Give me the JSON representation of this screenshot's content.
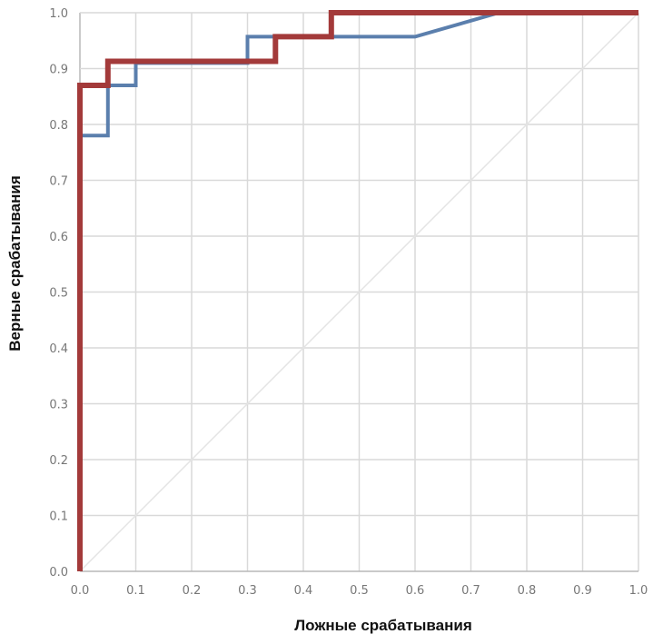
{
  "chart_data": {
    "type": "line",
    "xlabel": "Ложные срабатывания",
    "ylabel": "Верные срабатывания",
    "xlim": [
      0,
      1
    ],
    "ylim": [
      0,
      1
    ],
    "grid": true,
    "x_ticks": [
      "0.0",
      "0.1",
      "0.2",
      "0.3",
      "0.4",
      "0.5",
      "0.6",
      "0.7",
      "0.8",
      "0.9",
      "1.0"
    ],
    "y_ticks": [
      "0.0",
      "0.1",
      "0.2",
      "0.3",
      "0.4",
      "0.5",
      "0.6",
      "0.7",
      "0.8",
      "0.9",
      "1.0"
    ],
    "reference_line": {
      "x": [
        0,
        1
      ],
      "y": [
        0,
        1
      ],
      "color": "#e4e4e4"
    },
    "series": [
      {
        "color": "#5b7fad",
        "x": [
          0,
          0,
          0.05,
          0.05,
          0.1,
          0.1,
          0.3,
          0.3,
          0.45,
          0.6,
          0.75,
          1.0
        ],
        "y": [
          0,
          0.78,
          0.78,
          0.87,
          0.87,
          0.91,
          0.91,
          0.957,
          0.957,
          0.957,
          1.0,
          1.0
        ]
      },
      {
        "color": "#a33a3a",
        "x": [
          0,
          0,
          0.05,
          0.05,
          0.35,
          0.35,
          0.45,
          0.45,
          1.0
        ],
        "y": [
          0,
          0.87,
          0.87,
          0.913,
          0.913,
          0.957,
          0.957,
          1.0,
          1.0
        ]
      }
    ]
  }
}
